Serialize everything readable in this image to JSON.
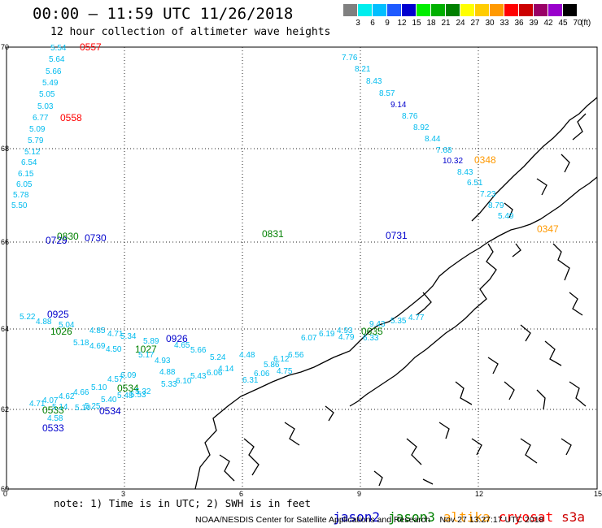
{
  "header": {
    "title": "00:00 – 11:59 UTC 11/26/2018",
    "subtitle": "12 hour collection of altimeter wave heights"
  },
  "color_scale": {
    "unit": "(ft)",
    "levels": [
      "3",
      "6",
      "9",
      "12",
      "15",
      "18",
      "21",
      "24",
      "27",
      "30",
      "33",
      "36",
      "39",
      "42",
      "45",
      "70"
    ],
    "colors": [
      "#808080",
      "#00eeee",
      "#00bfff",
      "#1e5aff",
      "#0000d0",
      "#00ee00",
      "#00b000",
      "#008000",
      "#ffff00",
      "#ffcc00",
      "#ff9900",
      "#ff0000",
      "#cc0000",
      "#990066",
      "#9900cc",
      "#000000"
    ]
  },
  "axes": {
    "x_ticks": [
      "0",
      "3",
      "6",
      "9",
      "12",
      "15"
    ],
    "y_ticks": [
      "70",
      "68",
      "66",
      "64",
      "62",
      "60"
    ]
  },
  "colors": {
    "jason2": "#0000cc",
    "jason3": "#008000",
    "altika": "#ff9900",
    "cryosat": "#ff0000",
    "s3a": "#cc0000",
    "value": "#00bbee"
  },
  "time_labels": [
    {
      "text": "0557",
      "sat": "cryosat"
    },
    {
      "text": "0558",
      "sat": "cryosat"
    },
    {
      "text": "0348",
      "sat": "altika"
    },
    {
      "text": "0347",
      "sat": "altika"
    },
    {
      "text": "0729",
      "sat": "jason2"
    },
    {
      "text": "0730",
      "sat": "jason2"
    },
    {
      "text": "0731",
      "sat": "jason2"
    },
    {
      "text": "0830",
      "sat": "jason3"
    },
    {
      "text": "0831",
      "sat": "jason3"
    },
    {
      "text": "0925",
      "sat": "jason2"
    },
    {
      "text": "0926",
      "sat": "jason2"
    },
    {
      "text": "1026",
      "sat": "jason3"
    },
    {
      "text": "1027",
      "sat": "jason3"
    },
    {
      "text": "0635",
      "sat": "jason3"
    },
    {
      "text": "0533",
      "sat": "jason3"
    },
    {
      "text": "0533",
      "sat": "jason2"
    },
    {
      "text": "0534",
      "sat": "jason2"
    },
    {
      "text": "0534",
      "sat": "jason3"
    }
  ],
  "wave_values": [
    "5.54",
    "5.64",
    "5.66",
    "5.49",
    "5.05",
    "5.03",
    "6.77",
    "5.09",
    "5.79",
    "5.12",
    "6.54",
    "6.15",
    "6.05",
    "5.78",
    "5.50",
    "7.76",
    "8.21",
    "8.43",
    "8.57",
    "9.14",
    "8.76",
    "8.92",
    "8.44",
    "7.68",
    "10.32",
    "8.43",
    "6.51",
    "7.23",
    "8.79",
    "5.49",
    "5.22",
    "4.88",
    "5.04",
    "5.18",
    "4.69",
    "4.50",
    "4.85",
    "4.71",
    "5.34",
    "5.89",
    "5.17",
    "4.93",
    "4.88",
    "4.65",
    "5.66",
    "5.24",
    "4.48",
    "6.12",
    "6.56",
    "6.07",
    "6.19",
    "4.93",
    "4.79",
    "5.35",
    "4.77",
    "6.31",
    "4.75",
    "6.06",
    "5.86",
    "4.71",
    "4.07",
    "4.62",
    "4.66",
    "5.10",
    "4.57",
    "6.09",
    "5.32",
    "6.10",
    "5.43",
    "6.06",
    "4.14",
    "5.10",
    "5.14",
    "4.58",
    "5.25",
    "5.40",
    "5.48",
    "5.53",
    "5.33",
    "9.43",
    "6.33"
  ],
  "footer": {
    "note": "note: 1) Time is in UTC; 2) SWH is in feet",
    "legend": [
      "jason2",
      "jason3",
      "altika",
      "cryosat",
      "s3a"
    ],
    "credit": "NOAA/NESDIS Center for Satellite Applications and Research    Nov 27 13:27:17 UTC 2018"
  }
}
